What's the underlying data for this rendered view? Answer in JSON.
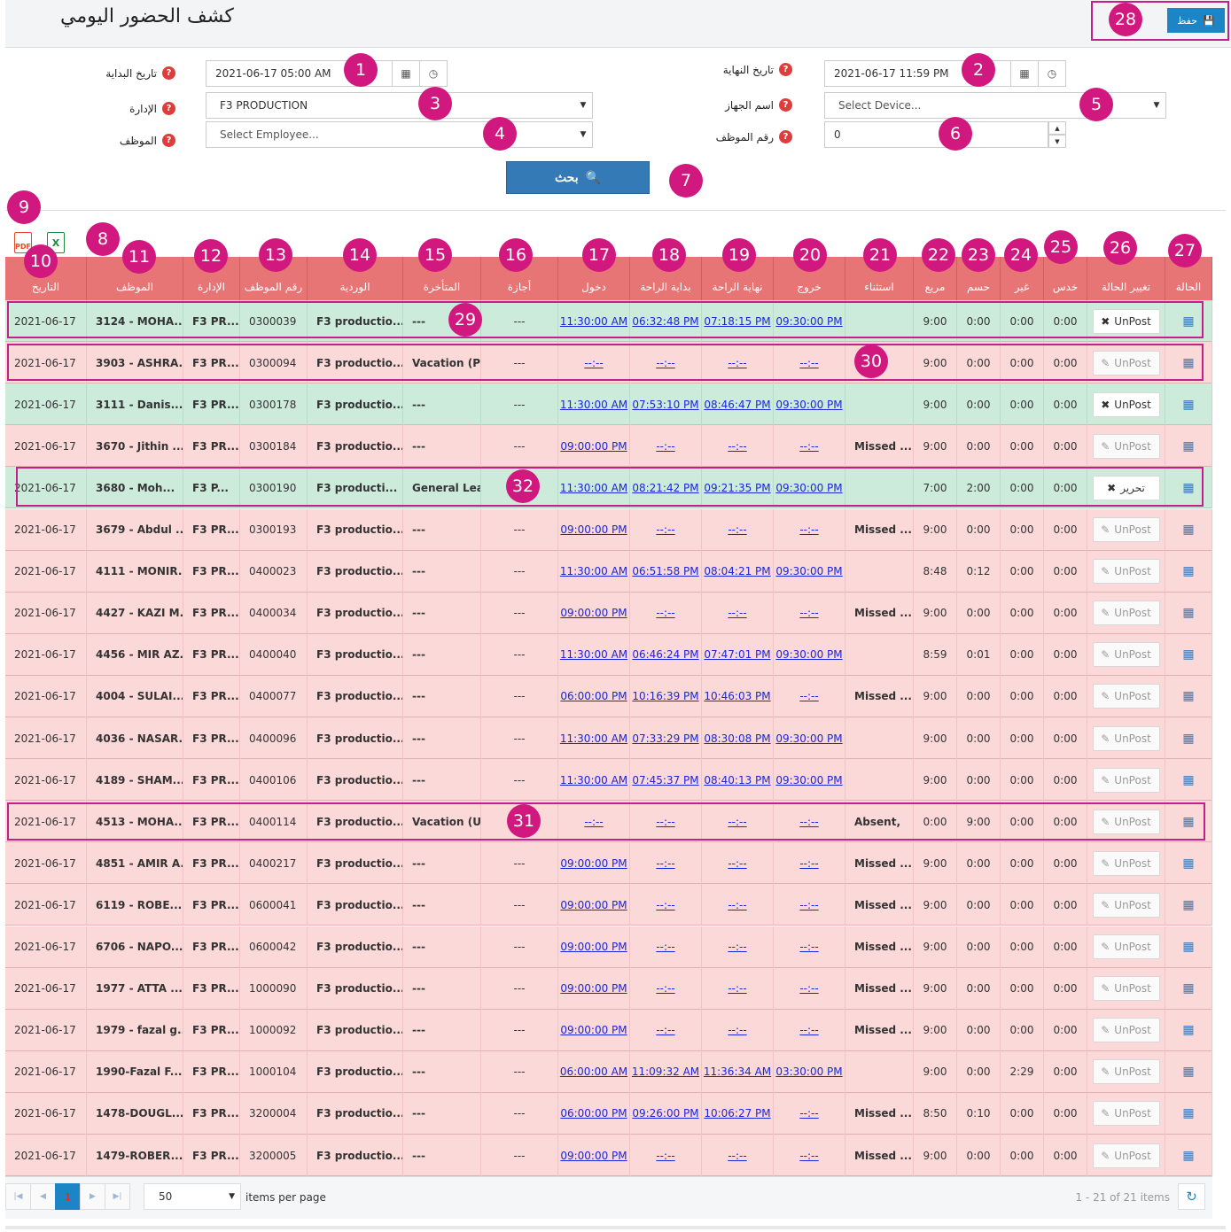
{
  "title": "كشف الحضور اليومي",
  "save_label": "حفظ",
  "filters": {
    "start_label": "تاريخ البداية",
    "start_value": "2021-06-17 05:00 AM",
    "end_label": "تاريخ النهاية",
    "end_value": "2021-06-17 11:59 PM",
    "dept_label": "الإدارة",
    "dept_value": "F3 PRODUCTION",
    "device_label": "اسم الجهاز",
    "device_placeholder": "Select Device...",
    "employee_label": "الموظف",
    "employee_placeholder": "Select Employee...",
    "empno_label": "رقم الموظف",
    "empno_value": "0",
    "search_label": "بحث"
  },
  "headers": [
    "التاريخ",
    "الموظف",
    "الإدارة",
    "رقم الموظف",
    "الوردية",
    "المتأخرة",
    "أجازة",
    "دخول",
    "بداية الراحة",
    "نهاية الراحة",
    "خروج",
    "استثناء",
    "مريع",
    "حسم",
    "غير",
    "خدس",
    "تغيير الحالة",
    "الحالة"
  ],
  "badges": [
    "1",
    "2",
    "3",
    "4",
    "5",
    "6",
    "7",
    "8",
    "9",
    "10",
    "11",
    "12",
    "13",
    "14",
    "15",
    "16",
    "17",
    "18",
    "19",
    "20",
    "21",
    "22",
    "23",
    "24",
    "25",
    "26",
    "27",
    "28",
    "29",
    "30",
    "31",
    "32"
  ],
  "rows": [
    {
      "status": "green",
      "date": "2021-06-17",
      "emp": "3124 - MOHA...",
      "dept": "F3 PR...",
      "no": "0300039",
      "shift": "F3 productio...",
      "late": "---",
      "leave": "---",
      "in": "11:30:00 AM",
      "bs": "06:32:48 PM",
      "be": "07:18:15 PM",
      "out": "09:30:00 PM",
      "exc": "",
      "w": "9:00",
      "d": "0:00",
      "a": "0:00",
      "o": "0:00",
      "btn": "UnPost",
      "active": true
    },
    {
      "status": "pink",
      "date": "2021-06-17",
      "emp": "3903 - ASHRA...",
      "dept": "F3 PR...",
      "no": "0300094",
      "shift": "F3 productio...",
      "late": "Vacation (Paid",
      "leave": "---",
      "in": "--:--",
      "bs": "--:--",
      "be": "--:--",
      "out": "--:--",
      "exc": "",
      "w": "9:00",
      "d": "0:00",
      "a": "0:00",
      "o": "0:00",
      "btn": "UnPost",
      "active": false
    },
    {
      "status": "green",
      "date": "2021-06-17",
      "emp": "3111 - Danis...",
      "dept": "F3 PR...",
      "no": "0300178",
      "shift": "F3 productio...",
      "late": "---",
      "leave": "---",
      "in": "11:30:00 AM",
      "bs": "07:53:10 PM",
      "be": "08:46:47 PM",
      "out": "09:30:00 PM",
      "exc": "",
      "w": "9:00",
      "d": "0:00",
      "a": "0:00",
      "o": "0:00",
      "btn": "UnPost",
      "active": true
    },
    {
      "status": "pink",
      "date": "2021-06-17",
      "emp": "3670 - Jithin ...",
      "dept": "F3 PR...",
      "no": "0300184",
      "shift": "F3 productio...",
      "late": "---",
      "leave": "---",
      "in": "09:00:00 PM",
      "bs": "--:--",
      "be": "--:--",
      "out": "--:--",
      "exc": "Missed ...",
      "w": "9:00",
      "d": "0:00",
      "a": "0:00",
      "o": "0:00",
      "btn": "UnPost",
      "active": false
    },
    {
      "status": "green",
      "date": "2021-06-17",
      "emp": "3680 - Moh...",
      "dept": "F3 P...",
      "no": "0300190",
      "shift": "F3 producti...",
      "late": "General Lea",
      "leave": "",
      "in": "11:30:00 AM",
      "bs": "08:21:42 PM",
      "be": "09:21:35 PM",
      "out": "09:30:00 PM",
      "exc": "",
      "w": "7:00",
      "d": "2:00",
      "a": "0:00",
      "o": "0:00",
      "btn": "تحرير",
      "active": true
    },
    {
      "status": "pink",
      "date": "2021-06-17",
      "emp": "3679 - Abdul ...",
      "dept": "F3 PR...",
      "no": "0300193",
      "shift": "F3 productio...",
      "late": "---",
      "leave": "---",
      "in": "09:00:00 PM",
      "bs": "--:--",
      "be": "--:--",
      "out": "--:--",
      "exc": "Missed ...",
      "w": "9:00",
      "d": "0:00",
      "a": "0:00",
      "o": "0:00",
      "btn": "UnPost",
      "active": false
    },
    {
      "status": "pink",
      "date": "2021-06-17",
      "emp": "4111 - MONIR...",
      "dept": "F3 PR...",
      "no": "0400023",
      "shift": "F3 productio...",
      "late": "---",
      "leave": "---",
      "in": "11:30:00 AM",
      "bs": "06:51:58 PM",
      "be": "08:04:21 PM",
      "out": "09:30:00 PM",
      "exc": "",
      "w": "8:48",
      "d": "0:12",
      "a": "0:00",
      "o": "0:00",
      "btn": "UnPost",
      "active": false
    },
    {
      "status": "pink",
      "date": "2021-06-17",
      "emp": "4427 - KAZI M...",
      "dept": "F3 PR...",
      "no": "0400034",
      "shift": "F3 productio...",
      "late": "---",
      "leave": "---",
      "in": "09:00:00 PM",
      "bs": "--:--",
      "be": "--:--",
      "out": "--:--",
      "exc": "Missed ...",
      "w": "9:00",
      "d": "0:00",
      "a": "0:00",
      "o": "0:00",
      "btn": "UnPost",
      "active": false
    },
    {
      "status": "pink",
      "date": "2021-06-17",
      "emp": "4456 - MIR AZ...",
      "dept": "F3 PR...",
      "no": "0400040",
      "shift": "F3 productio...",
      "late": "---",
      "leave": "---",
      "in": "11:30:00 AM",
      "bs": "06:46:24 PM",
      "be": "07:47:01 PM",
      "out": "09:30:00 PM",
      "exc": "",
      "w": "8:59",
      "d": "0:01",
      "a": "0:00",
      "o": "0:00",
      "btn": "UnPost",
      "active": false
    },
    {
      "status": "pink",
      "date": "2021-06-17",
      "emp": "4004 - SULAI...",
      "dept": "F3 PR...",
      "no": "0400077",
      "shift": "F3 productio...",
      "late": "---",
      "leave": "---",
      "in": "06:00:00 PM",
      "bs": "10:16:39 PM",
      "be": "10:46:03 PM",
      "out": "--:--",
      "exc": "Missed ...",
      "w": "9:00",
      "d": "0:00",
      "a": "0:00",
      "o": "0:00",
      "btn": "UnPost",
      "active": false
    },
    {
      "status": "pink",
      "date": "2021-06-17",
      "emp": "4036 - NASAR...",
      "dept": "F3 PR...",
      "no": "0400096",
      "shift": "F3 productio...",
      "late": "---",
      "leave": "---",
      "in": "11:30:00 AM",
      "bs": "07:33:29 PM",
      "be": "08:30:08 PM",
      "out": "09:30:00 PM",
      "exc": "",
      "w": "9:00",
      "d": "0:00",
      "a": "0:00",
      "o": "0:00",
      "btn": "UnPost",
      "active": false
    },
    {
      "status": "pink",
      "date": "2021-06-17",
      "emp": "4189 - SHAM...",
      "dept": "F3 PR...",
      "no": "0400106",
      "shift": "F3 productio...",
      "late": "---",
      "leave": "---",
      "in": "11:30:00 AM",
      "bs": "07:45:37 PM",
      "be": "08:40:13 PM",
      "out": "09:30:00 PM",
      "exc": "",
      "w": "9:00",
      "d": "0:00",
      "a": "0:00",
      "o": "0:00",
      "btn": "UnPost",
      "active": false
    },
    {
      "status": "pink",
      "date": "2021-06-17",
      "emp": "4513 - MOHA...",
      "dept": "F3 PR...",
      "no": "0400114",
      "shift": "F3 productio...",
      "late": "Vacation (Unf",
      "leave": "",
      "in": "--:--",
      "bs": "--:--",
      "be": "--:--",
      "out": "--:--",
      "exc": "Absent,",
      "w": "0:00",
      "d": "9:00",
      "a": "0:00",
      "o": "0:00",
      "btn": "UnPost",
      "active": false
    },
    {
      "status": "pink",
      "date": "2021-06-17",
      "emp": "4851 - AMIR A...",
      "dept": "F3 PR...",
      "no": "0400217",
      "shift": "F3 productio...",
      "late": "---",
      "leave": "---",
      "in": "09:00:00 PM",
      "bs": "--:--",
      "be": "--:--",
      "out": "--:--",
      "exc": "Missed ...",
      "w": "9:00",
      "d": "0:00",
      "a": "0:00",
      "o": "0:00",
      "btn": "UnPost",
      "active": false
    },
    {
      "status": "pink",
      "date": "2021-06-17",
      "emp": "6119 - ROBE...",
      "dept": "F3 PR...",
      "no": "0600041",
      "shift": "F3 productio...",
      "late": "---",
      "leave": "---",
      "in": "09:00:00 PM",
      "bs": "--:--",
      "be": "--:--",
      "out": "--:--",
      "exc": "Missed ...",
      "w": "9:00",
      "d": "0:00",
      "a": "0:00",
      "o": "0:00",
      "btn": "UnPost",
      "active": false
    },
    {
      "status": "pink",
      "date": "2021-06-17",
      "emp": "6706 - NAPO...",
      "dept": "F3 PR...",
      "no": "0600042",
      "shift": "F3 productio...",
      "late": "---",
      "leave": "---",
      "in": "09:00:00 PM",
      "bs": "--:--",
      "be": "--:--",
      "out": "--:--",
      "exc": "Missed ...",
      "w": "9:00",
      "d": "0:00",
      "a": "0:00",
      "o": "0:00",
      "btn": "UnPost",
      "active": false
    },
    {
      "status": "pink",
      "date": "2021-06-17",
      "emp": "1977 - ATTA ...",
      "dept": "F3 PR...",
      "no": "1000090",
      "shift": "F3 productio...",
      "late": "---",
      "leave": "---",
      "in": "09:00:00 PM",
      "bs": "--:--",
      "be": "--:--",
      "out": "--:--",
      "exc": "Missed ...",
      "w": "9:00",
      "d": "0:00",
      "a": "0:00",
      "o": "0:00",
      "btn": "UnPost",
      "active": false
    },
    {
      "status": "pink",
      "date": "2021-06-17",
      "emp": "1979 - fazal g...",
      "dept": "F3 PR...",
      "no": "1000092",
      "shift": "F3 productio...",
      "late": "---",
      "leave": "---",
      "in": "09:00:00 PM",
      "bs": "--:--",
      "be": "--:--",
      "out": "--:--",
      "exc": "Missed ...",
      "w": "9:00",
      "d": "0:00",
      "a": "0:00",
      "o": "0:00",
      "btn": "UnPost",
      "active": false
    },
    {
      "status": "pink",
      "date": "2021-06-17",
      "emp": "1990-Fazal F...",
      "dept": "F3 PR...",
      "no": "1000104",
      "shift": "F3 productio...",
      "late": "---",
      "leave": "---",
      "in": "06:00:00 AM",
      "bs": "11:09:32 AM",
      "be": "11:36:34 AM",
      "out": "03:30:00 PM",
      "exc": "",
      "w": "9:00",
      "d": "0:00",
      "a": "2:29",
      "o": "0:00",
      "btn": "UnPost",
      "active": false
    },
    {
      "status": "pink",
      "date": "2021-06-17",
      "emp": "1478-DOUGL...",
      "dept": "F3 PR...",
      "no": "3200004",
      "shift": "F3 productio...",
      "late": "---",
      "leave": "---",
      "in": "06:00:00 PM",
      "bs": "09:26:00 PM",
      "be": "10:06:27 PM",
      "out": "--:--",
      "exc": "Missed ...",
      "w": "8:50",
      "d": "0:10",
      "a": "0:00",
      "o": "0:00",
      "btn": "UnPost",
      "active": false
    },
    {
      "status": "pink",
      "date": "2021-06-17",
      "emp": "1479-ROBER...",
      "dept": "F3 PR...",
      "no": "3200005",
      "shift": "F3 productio...",
      "late": "---",
      "leave": "---",
      "in": "09:00:00 PM",
      "bs": "--:--",
      "be": "--:--",
      "out": "--:--",
      "exc": "Missed ...",
      "w": "9:00",
      "d": "0:00",
      "a": "0:00",
      "o": "0:00",
      "btn": "UnPost",
      "active": false
    }
  ],
  "pager": {
    "current": "1",
    "page_size": "50",
    "per_page_label": "items per page",
    "info": "1 - 21 of 21 items"
  }
}
